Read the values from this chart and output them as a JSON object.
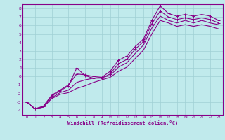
{
  "background_color": "#c0eaec",
  "grid_color": "#a0d0d4",
  "line_color": "#880088",
  "spine_color": "#880088",
  "xlim": [
    -0.5,
    23.5
  ],
  "ylim": [
    -4.5,
    8.5
  ],
  "xticks": [
    0,
    1,
    2,
    3,
    4,
    5,
    6,
    7,
    8,
    9,
    10,
    11,
    12,
    13,
    14,
    15,
    16,
    17,
    18,
    19,
    20,
    21,
    22,
    23
  ],
  "yticks": [
    -4,
    -3,
    -2,
    -1,
    0,
    1,
    2,
    3,
    4,
    5,
    6,
    7,
    8
  ],
  "xlabel": "Windchill (Refroidissement éolien,°C)",
  "line1_x": [
    0,
    1,
    2,
    3,
    4,
    5,
    6,
    7,
    8,
    9,
    10,
    11,
    12,
    13,
    14,
    15,
    16,
    17,
    18,
    19,
    20,
    21,
    22,
    23
  ],
  "line1_y": [
    -3.0,
    -3.8,
    -3.5,
    -2.2,
    -1.6,
    -1.0,
    0.3,
    0.2,
    0.0,
    -0.1,
    0.6,
    1.9,
    2.4,
    3.5,
    4.4,
    6.6,
    8.3,
    7.4,
    7.1,
    7.3,
    7.1,
    7.3,
    7.1,
    6.6
  ],
  "line2_x": [
    0,
    1,
    2,
    3,
    4,
    5,
    6,
    7,
    8,
    9,
    10,
    11,
    12,
    13,
    14,
    15,
    16,
    17,
    18,
    19,
    20,
    21,
    22,
    23
  ],
  "line2_y": [
    -3.0,
    -3.8,
    -3.5,
    -2.3,
    -1.7,
    -1.1,
    1.0,
    0.1,
    -0.2,
    -0.2,
    0.3,
    1.5,
    2.0,
    3.2,
    4.1,
    6.2,
    7.7,
    7.0,
    6.7,
    6.9,
    6.7,
    6.9,
    6.7,
    6.3
  ],
  "line3_x": [
    0,
    1,
    2,
    3,
    4,
    5,
    6,
    7,
    8,
    9,
    10,
    11,
    12,
    13,
    14,
    15,
    16,
    17,
    18,
    19,
    20,
    21,
    22,
    23
  ],
  "line3_y": [
    -3.0,
    -3.8,
    -3.6,
    -2.5,
    -1.9,
    -1.6,
    -0.7,
    -0.4,
    -0.2,
    -0.1,
    0.1,
    1.1,
    1.6,
    2.7,
    3.7,
    5.7,
    7.1,
    6.6,
    6.3,
    6.6,
    6.3,
    6.6,
    6.3,
    6.1
  ],
  "line4_x": [
    0,
    1,
    2,
    3,
    4,
    5,
    6,
    7,
    8,
    9,
    10,
    11,
    12,
    13,
    14,
    15,
    16,
    17,
    18,
    19,
    20,
    21,
    22,
    23
  ],
  "line4_y": [
    -3.0,
    -3.8,
    -3.6,
    -2.6,
    -2.1,
    -1.9,
    -1.4,
    -1.1,
    -0.7,
    -0.4,
    -0.1,
    0.6,
    1.1,
    2.1,
    3.1,
    5.0,
    6.6,
    6.3,
    5.9,
    6.1,
    5.9,
    6.1,
    5.9,
    5.6
  ]
}
